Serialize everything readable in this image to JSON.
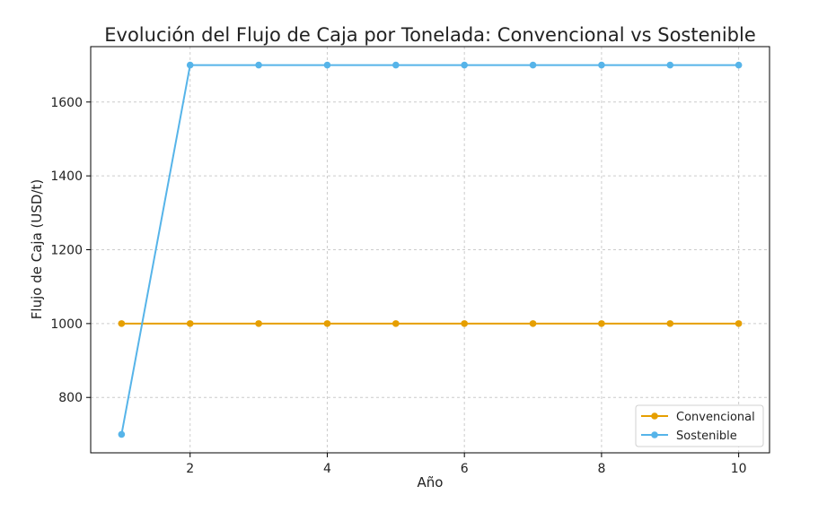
{
  "chart_data": {
    "type": "line",
    "title": "Evolución del Flujo de Caja por Tonelada: Convencional vs Sostenible",
    "xlabel": "Año",
    "ylabel": "Flujo de Caja (USD/t)",
    "x": [
      1,
      2,
      3,
      4,
      5,
      6,
      7,
      8,
      9,
      10
    ],
    "xlim": [
      0.55,
      10.45
    ],
    "ylim": [
      650,
      1750
    ],
    "xticks": [
      2,
      4,
      6,
      8,
      10
    ],
    "yticks": [
      800,
      1000,
      1200,
      1400,
      1600
    ],
    "grid": true,
    "legend_position": "bottom-right",
    "series": [
      {
        "name": "Convencional",
        "color": "#E69F00",
        "values": [
          1000,
          1000,
          1000,
          1000,
          1000,
          1000,
          1000,
          1000,
          1000,
          1000
        ]
      },
      {
        "name": "Sostenible",
        "color": "#56B4E9",
        "values": [
          700,
          1700,
          1700,
          1700,
          1700,
          1700,
          1700,
          1700,
          1700,
          1700
        ]
      }
    ]
  }
}
